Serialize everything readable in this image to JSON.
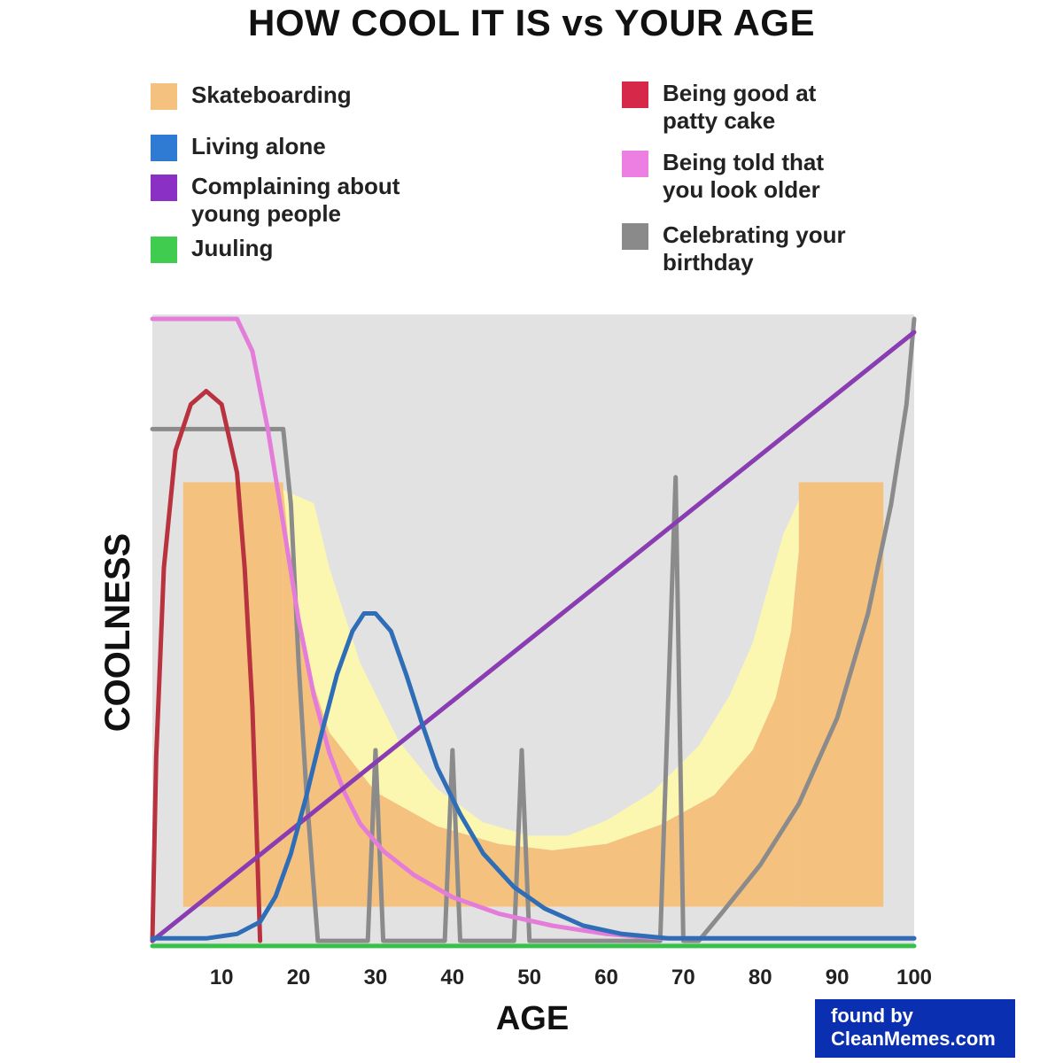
{
  "chart_data": {
    "type": "line",
    "title": "HOW COOL IT IS vs YOUR AGE",
    "xlabel": "AGE",
    "ylabel": "COOLNESS",
    "xlim": [
      1,
      100
    ],
    "ylim": [
      0,
      100
    ],
    "x_ticks": [
      10,
      20,
      30,
      40,
      50,
      60,
      70,
      80,
      90,
      100
    ],
    "grid": false,
    "legend_position": "top",
    "background_color": "#e2e2e2",
    "series": [
      {
        "name": "Skateboarding",
        "color": "#f5c17f",
        "style": "halfpipe-fill",
        "halfpipe": {
          "base_top": 6.5,
          "left_wall": [
            5,
            18
          ],
          "right_wall": [
            85,
            96
          ],
          "deck_y": 73.5,
          "coping": [
            [
              18,
              72.3
            ],
            [
              22,
              70.2
            ],
            [
              24,
              60
            ],
            [
              28,
              45
            ],
            [
              33,
              32.7
            ],
            [
              38,
              25.1
            ],
            [
              44,
              19.8
            ],
            [
              50,
              17.7
            ],
            [
              55,
              17.7
            ],
            [
              60,
              20.1
            ],
            [
              66,
              24.6
            ],
            [
              72,
              31.9
            ],
            [
              76,
              39.8
            ],
            [
              79,
              48.1
            ],
            [
              81,
              56.8
            ],
            [
              83,
              65.3
            ],
            [
              85,
              70.6
            ]
          ],
          "transition_bottom": [
            [
              18,
              72.3
            ],
            [
              19,
              60
            ],
            [
              21,
              45
            ],
            [
              24,
              34
            ],
            [
              30,
              24.6
            ],
            [
              38,
              19.2
            ],
            [
              46,
              16.4
            ],
            [
              53,
              15.4
            ],
            [
              60,
              16.4
            ],
            [
              67,
              19.4
            ],
            [
              74,
              24.1
            ],
            [
              79,
              31.2
            ],
            [
              82,
              39.4
            ],
            [
              84,
              50
            ],
            [
              85,
              62.5
            ],
            [
              85,
              72.3
            ]
          ]
        }
      },
      {
        "name": "Living alone",
        "color": "#2f6eb7",
        "points": [
          [
            1,
            1.5
          ],
          [
            8,
            1.5
          ],
          [
            12,
            2.2
          ],
          [
            15,
            4.1
          ],
          [
            17,
            8.1
          ],
          [
            19,
            14.9
          ],
          [
            21,
            23.9
          ],
          [
            23,
            33.9
          ],
          [
            25,
            43.2
          ],
          [
            27,
            50
          ],
          [
            28.5,
            52.8
          ],
          [
            30,
            52.8
          ],
          [
            32,
            50
          ],
          [
            34,
            43.1
          ],
          [
            36,
            35.6
          ],
          [
            38,
            28.5
          ],
          [
            41,
            21.1
          ],
          [
            44,
            14.9
          ],
          [
            48,
            9.6
          ],
          [
            52,
            6.2
          ],
          [
            57,
            3.5
          ],
          [
            62,
            2.2
          ],
          [
            68,
            1.5
          ],
          [
            100,
            1.5
          ]
        ]
      },
      {
        "name": "Complaining about young people",
        "color": "#8a3cb2",
        "points": [
          [
            1,
            1.1
          ],
          [
            100,
            97.2
          ]
        ]
      },
      {
        "name": "Juuling",
        "color": "#36c24a",
        "points": [
          [
            1,
            0.3
          ],
          [
            100,
            0.3
          ]
        ]
      },
      {
        "name": "Being good at patty cake",
        "color": "#b8323f",
        "points": [
          [
            1,
            1.1
          ],
          [
            1.5,
            30
          ],
          [
            2.5,
            60
          ],
          [
            4,
            78.5
          ],
          [
            6,
            85.8
          ],
          [
            8,
            87.9
          ],
          [
            10,
            85.8
          ],
          [
            12,
            75
          ],
          [
            13,
            60
          ],
          [
            14,
            38
          ],
          [
            14.5,
            20
          ],
          [
            15,
            1.1
          ]
        ]
      },
      {
        "name": "Being told that you look older",
        "color": "#e47dd9",
        "points": [
          [
            1,
            99.3
          ],
          [
            12,
            99.3
          ],
          [
            14,
            94.2
          ],
          [
            16,
            81.9
          ],
          [
            18,
            67
          ],
          [
            20,
            51.8
          ],
          [
            22,
            39.8
          ],
          [
            24,
            30.8
          ],
          [
            26,
            24.4
          ],
          [
            28,
            19.6
          ],
          [
            31,
            15.3
          ],
          [
            35,
            11.5
          ],
          [
            40,
            8
          ],
          [
            46,
            5.4
          ],
          [
            53,
            3.5
          ],
          [
            60,
            2.2
          ],
          [
            67,
            1.5
          ],
          [
            100,
            1.5
          ]
        ]
      },
      {
        "name": "Celebrating your birthday",
        "color": "#8b8b8b",
        "points": [
          [
            1,
            81.9
          ],
          [
            18,
            81.9
          ],
          [
            19,
            70
          ],
          [
            20,
            45
          ],
          [
            21,
            25
          ],
          [
            22.5,
            1.1
          ],
          [
            29,
            1.1
          ],
          [
            30,
            31.2
          ],
          [
            31,
            1.1
          ],
          [
            39,
            1.1
          ],
          [
            40,
            31.2
          ],
          [
            41,
            1.1
          ],
          [
            48,
            1.1
          ],
          [
            49,
            31.2
          ],
          [
            50,
            1.1
          ],
          [
            67,
            1.1
          ],
          [
            69,
            74.3
          ],
          [
            70,
            1.1
          ],
          [
            72,
            1.1
          ],
          [
            75,
            5.5
          ],
          [
            80,
            13.1
          ],
          [
            85,
            22.7
          ],
          [
            90,
            36.3
          ],
          [
            94,
            52.8
          ],
          [
            97,
            70
          ],
          [
            99,
            85.8
          ],
          [
            100,
            99.3
          ]
        ]
      }
    ]
  },
  "legend": {
    "left": [
      {
        "label": "Skateboarding",
        "color": "#f5c17f"
      },
      {
        "label": "Living alone",
        "color": "#2f7ad3"
      },
      {
        "label": "Complaining about\nyoung people",
        "color": "#8a30c4"
      },
      {
        "label": "Juuling",
        "color": "#3fcc4f"
      }
    ],
    "right": [
      {
        "label": "Being good at\npatty cake",
        "color": "#d6294a"
      },
      {
        "label": "Being told that\nyou look older",
        "color": "#ec7fe1"
      },
      {
        "label": "Celebrating your\nbirthday",
        "color": "#8a8a8a"
      }
    ]
  },
  "watermark": {
    "line1": "found by",
    "line2": "CleanMemes.com",
    "color": "#0a2fb0"
  }
}
